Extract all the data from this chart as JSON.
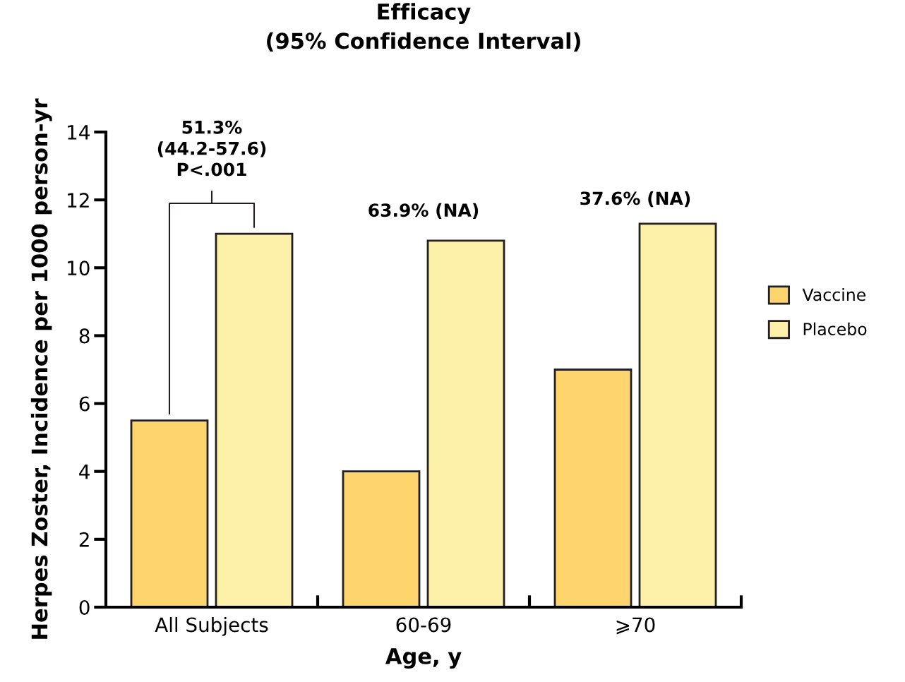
{
  "chart_data": {
    "type": "bar",
    "title": "Efficacy\n(95% Confidence Interval)",
    "xlabel": "Age, y",
    "ylabel": "Herpes Zoster, Incidence per 1000 person-yr",
    "categories": [
      "All Subjects",
      "60-69",
      "⩾70"
    ],
    "series": [
      {
        "name": "Vaccine",
        "color": "#fdd56c",
        "values": [
          5.5,
          4.0,
          7.0
        ]
      },
      {
        "name": "Placebo",
        "color": "#fdf0a8",
        "values": [
          11.0,
          10.8,
          11.3
        ]
      }
    ],
    "ylim": [
      0,
      14
    ],
    "yticks": [
      0,
      2,
      4,
      6,
      8,
      10,
      12,
      14
    ],
    "grid": false,
    "legend": "right",
    "annotations": [
      "51.3%\n(44.2-57.6)\nP<.001",
      "63.9% (NA)",
      "37.6% (NA)"
    ]
  }
}
